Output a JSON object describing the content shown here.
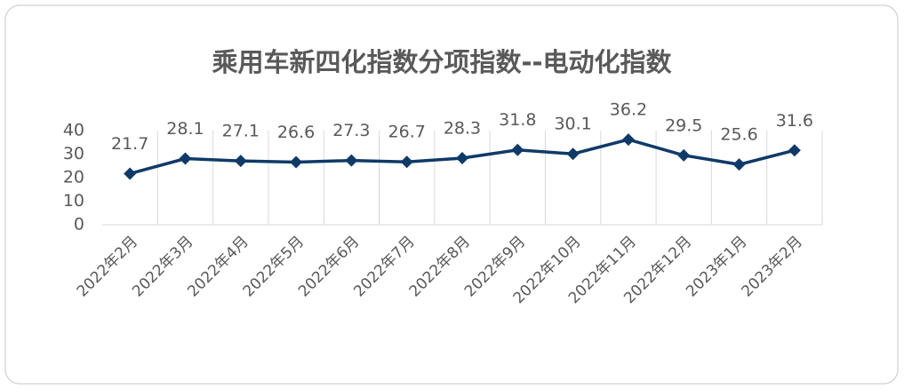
{
  "chart_data": {
    "type": "line",
    "title": "乘用车新四化指数分项指数--电动化指数",
    "categories": [
      "2022年2月",
      "2022年3月",
      "2022年4月",
      "2022年5月",
      "2022年6月",
      "2022年7月",
      "2022年8月",
      "2022年9月",
      "2022年10月",
      "2022年11月",
      "2022年12月",
      "2023年1月",
      "2023年2月"
    ],
    "values": [
      21.7,
      28.1,
      27.1,
      26.6,
      27.3,
      26.7,
      28.3,
      31.8,
      30.1,
      36.2,
      29.5,
      25.6,
      31.6
    ],
    "color": "#0f3a68",
    "ylim": [
      0,
      40
    ],
    "yticks": [
      0,
      10,
      20,
      30,
      40
    ],
    "grid": true
  }
}
